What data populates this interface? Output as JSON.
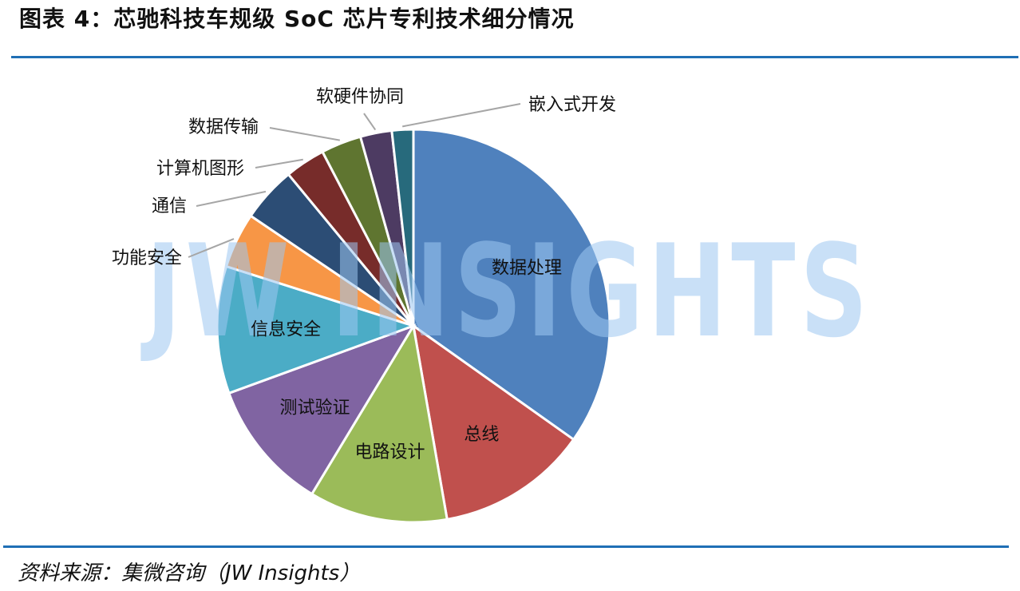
{
  "page": {
    "title": "图表 4：芯驰科技车规级 SoC 芯片专利技术细分情况",
    "source": "资料来源：集微咨询（JW Insights）",
    "watermark": "JW INSIGHTS"
  },
  "chart_data": {
    "type": "pie",
    "title": "图表 4：芯驰科技车规级 SoC 芯片专利技术细分情况",
    "start_angle_deg": 0,
    "direction": "clockwise",
    "labels": [
      "数据处理",
      "总线",
      "电路设计",
      "测试验证",
      "信息安全",
      "功能安全",
      "通信",
      "计算机图形",
      "数据传输",
      "软硬件协同",
      "嵌入式开发"
    ],
    "values": [
      33.6,
      12.0,
      11.0,
      10.4,
      10.1,
      4.4,
      4.4,
      3.2,
      3.2,
      2.5,
      1.7
    ],
    "colors": [
      "#4f81bd",
      "#c0504d",
      "#9bbb59",
      "#8064a2",
      "#4bacc6",
      "#f79646",
      "#2c4d75",
      "#772c2a",
      "#5f7530",
      "#4d3b62",
      "#276a7c"
    ],
    "label_placement": [
      "inside",
      "inside",
      "inside",
      "inside",
      "inside",
      "outside",
      "outside",
      "outside",
      "outside",
      "outside",
      "outside"
    ]
  }
}
